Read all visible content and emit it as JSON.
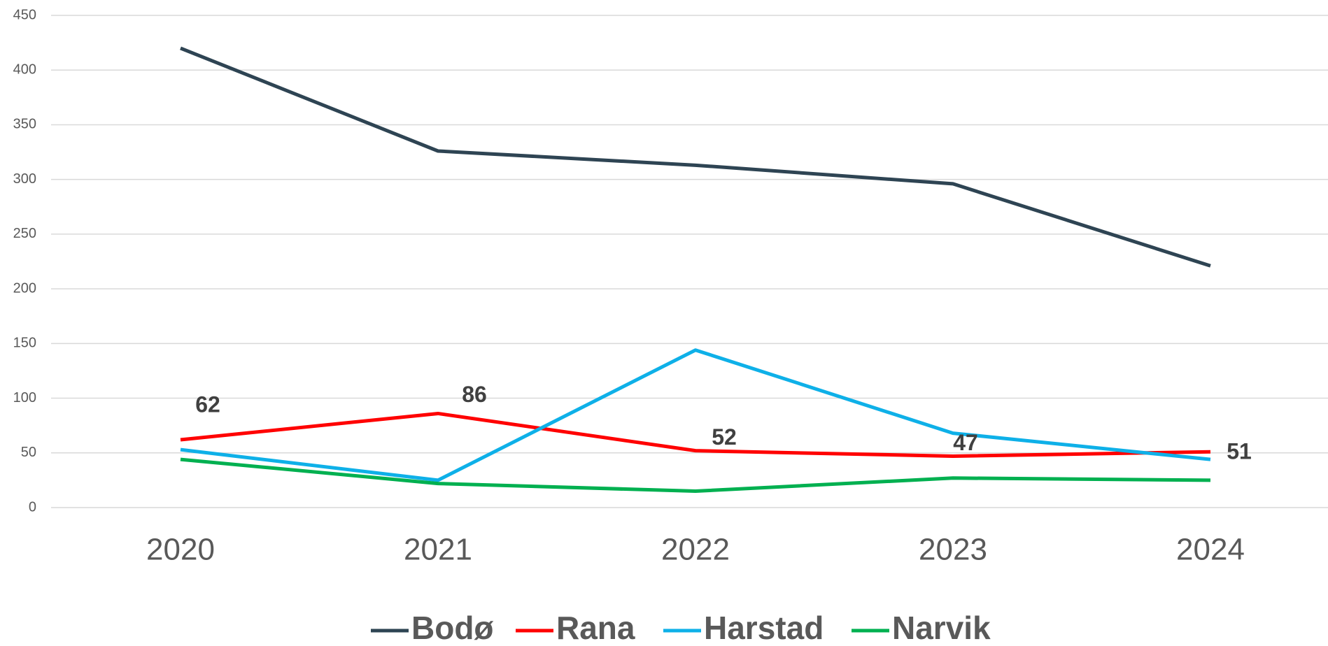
{
  "chart_data": {
    "type": "line",
    "categories": [
      "2020",
      "2021",
      "2022",
      "2023",
      "2024"
    ],
    "series": [
      {
        "name": "Bodø",
        "color": "#2e4453",
        "values": [
          420,
          326,
          313,
          296,
          221
        ]
      },
      {
        "name": "Rana",
        "color": "#ff0000",
        "values": [
          62,
          86,
          52,
          47,
          51
        ],
        "data_labels": true
      },
      {
        "name": "Harstad",
        "color": "#0eb0e8",
        "values": [
          53,
          25,
          144,
          68,
          44
        ]
      },
      {
        "name": "Narvik",
        "color": "#00b050",
        "values": [
          44,
          22,
          15,
          27,
          25
        ]
      }
    ],
    "ylim": [
      0,
      450
    ],
    "yticks": [
      0,
      50,
      100,
      150,
      200,
      250,
      300,
      350,
      400,
      450
    ],
    "grid": true,
    "legend": "bottom"
  }
}
